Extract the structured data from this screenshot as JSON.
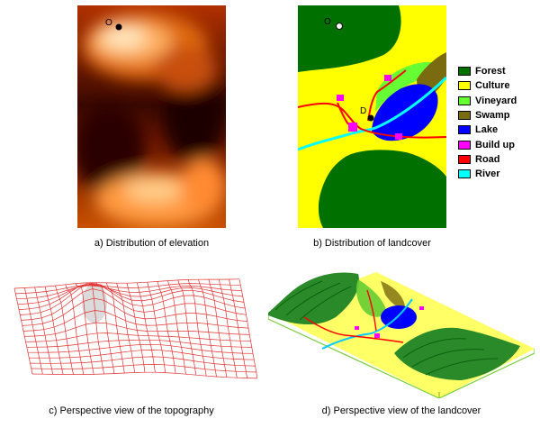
{
  "captions": {
    "a": "a) Distribution of elevation",
    "b": "b) Distribution of landcover",
    "c": "c) Perspective view of the topography",
    "d": "d) Perspective view of the landcover"
  },
  "markers": {
    "origin": "O",
    "destination": "D"
  },
  "legend": [
    {
      "label": "Forest",
      "color": "#007000"
    },
    {
      "label": "Culture",
      "color": "#ffff00"
    },
    {
      "label": "Vineyard",
      "color": "#66ff33"
    },
    {
      "label": "Swamp",
      "color": "#7a6a10"
    },
    {
      "label": "Lake",
      "color": "#0000ff"
    },
    {
      "label": "Build up",
      "color": "#ff00ff"
    },
    {
      "label": "Road",
      "color": "#ff0000"
    },
    {
      "label": "River",
      "color": "#00ffff"
    }
  ]
}
